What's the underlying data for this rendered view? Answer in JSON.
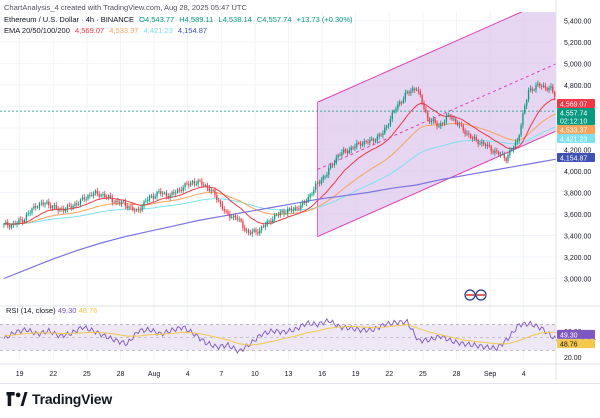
{
  "header": {
    "created_by": "ChartAnalysis_4 created with TradingView.com, Aug 28, 2025 05:47 UTC",
    "symbol": "Ethereum / U.S. Dollar · 4h · BINANCE",
    "open": "O4,543.77",
    "high": "H4,589.11",
    "low": "L4,538.14",
    "close": "C4,557.74",
    "change": "+13.73 (+0.30%)",
    "ema_label": "EMA 20/50/100/200",
    "ema_values": [
      "4,569.07",
      "4,533.37",
      "4,421.23",
      "4,154.87"
    ]
  },
  "rsi": {
    "label": "RSI (14, close)",
    "value": "49.30",
    "ma_value": "48.76"
  },
  "footer": {
    "brand": "TradingView"
  },
  "colors": {
    "up": "#089981",
    "down": "#f23645",
    "ema20": "#f23645",
    "ema50": "#f7a35c",
    "ema100": "#7fe0ef",
    "ema200": "#7b74e0",
    "channel": "#e040b0",
    "channel_fill": "#dcc4ec",
    "rsi_line": "#7e57c2",
    "rsi_ma": "#f2c94c",
    "rsi_band": "#ede7f6"
  },
  "chart_data": [
    {
      "type": "candlestick",
      "timeframe": "4h",
      "ylim": [
        2800,
        5480
      ],
      "y_ticks": [
        "3,000.00",
        "3,200.00",
        "3,400.00",
        "3,600.00",
        "3,800.00",
        "4,000.00",
        "4,200.00",
        "4,400.00",
        "4,600.00",
        "4,800.00",
        "5,000.00",
        "5,200.00",
        "5,400.00"
      ],
      "x_ticks": [
        "19",
        "22",
        "25",
        "28",
        "Aug",
        "4",
        "7",
        "10",
        "13",
        "16",
        "19",
        "22",
        "25",
        "28",
        "Sep",
        "4"
      ],
      "price_labels": [
        {
          "value": "4,569.07",
          "color": "#f23645"
        },
        {
          "value": "4,557.74",
          "color": "#089981"
        },
        {
          "value": "02:12:10",
          "color": "#089981"
        },
        {
          "value": "4,533.37",
          "color": "#f7a35c"
        },
        {
          "value": "4,421.23",
          "color": "#7fe0ef"
        },
        {
          "value": "4,154.87",
          "color": "#3f51b5"
        }
      ],
      "closes_daily": [
        3500,
        3560,
        3680,
        3700,
        3640,
        3660,
        3720,
        3790,
        3780,
        3720,
        3690,
        3620,
        3740,
        3800,
        3770,
        3840,
        3900,
        3880,
        3780,
        3600,
        3560,
        3420,
        3450,
        3550,
        3620,
        3640,
        3700,
        3860,
        3980,
        4150,
        4200,
        4260,
        4280,
        4350,
        4560,
        4710,
        4780,
        4490,
        4420,
        4520,
        4400,
        4300,
        4250,
        4180,
        4120,
        4280,
        4750,
        4800,
        4760,
        4600,
        4420,
        4500,
        4560
      ],
      "ema_200": [
        3000,
        3090,
        3180,
        3260,
        3330,
        3390,
        3440,
        3490,
        3540,
        3580,
        3620,
        3660,
        3700,
        3740,
        3770,
        3800,
        3840,
        3870,
        3920,
        3960,
        4000,
        4040,
        4080,
        4120,
        4154.87
      ],
      "channel": {
        "start_day": 28,
        "end_day": 54,
        "lower": [
          3390,
          4590
        ],
        "upper": [
          4640,
          5840
        ],
        "mid": [
          4015,
          5215
        ]
      },
      "series": [
        {
          "name": "EMA 20",
          "value": 4569.07
        },
        {
          "name": "EMA 50",
          "value": 4533.37
        },
        {
          "name": "EMA 100",
          "value": 4421.23
        },
        {
          "name": "EMA 200",
          "value": 4154.87
        }
      ]
    },
    {
      "type": "line",
      "ylim": [
        15,
        80
      ],
      "y_ticks": [
        "20.00",
        "40.00",
        "60.00"
      ],
      "rsi_band": [
        30,
        70
      ],
      "rsi": [
        48,
        58,
        62,
        55,
        60,
        52,
        56,
        66,
        60,
        52,
        45,
        40,
        60,
        62,
        55,
        61,
        66,
        55,
        42,
        35,
        38,
        28,
        40,
        55,
        60,
        58,
        62,
        72,
        70,
        76,
        66,
        64,
        61,
        62,
        70,
        73,
        74,
        45,
        46,
        52,
        44,
        40,
        38,
        35,
        33,
        48,
        70,
        71,
        64,
        50,
        40,
        48,
        49.3
      ],
      "rsi_ma": [
        52,
        54,
        56,
        57,
        57,
        56,
        56,
        57,
        58,
        57,
        55,
        52,
        52,
        54,
        55,
        56,
        58,
        57,
        54,
        50,
        46,
        40,
        38,
        40,
        44,
        48,
        52,
        57,
        60,
        64,
        66,
        67,
        66,
        65,
        66,
        68,
        70,
        64,
        58,
        54,
        50,
        46,
        44,
        42,
        40,
        40,
        45,
        52,
        57,
        58,
        56,
        52,
        48.76
      ]
    }
  ]
}
